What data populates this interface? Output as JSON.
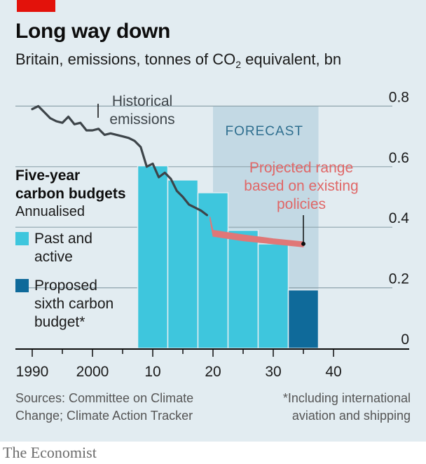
{
  "header": {
    "title": "Long way down",
    "subtitle_main": "Britain, emissions, tonnes of CO",
    "subtitle_sub": "2",
    "subtitle_tail": " equivalent, bn"
  },
  "chart_data": {
    "type": "line",
    "x_ticks": [
      1990,
      2000,
      2010,
      2020,
      2030,
      2040
    ],
    "x_tick_labels": [
      "1990",
      "2000",
      "10",
      "20",
      "30",
      "40"
    ],
    "y_ticks": [
      0,
      0.2,
      0.4,
      0.6,
      0.8
    ],
    "y_tick_labels": [
      "0",
      "0.2",
      "0.4",
      "0.6",
      "0.8"
    ],
    "xlim": [
      1990,
      2040
    ],
    "ylim": [
      0,
      0.8
    ],
    "forecast": {
      "label": "FORECAST",
      "start": 2020,
      "end": 2037.5
    },
    "historical": {
      "label_lines": [
        "Historical",
        "emissions"
      ],
      "points": [
        [
          1990,
          0.79
        ],
        [
          1991,
          0.8
        ],
        [
          1992,
          0.78
        ],
        [
          1993,
          0.76
        ],
        [
          1994,
          0.75
        ],
        [
          1995,
          0.745
        ],
        [
          1996,
          0.765
        ],
        [
          1997,
          0.74
        ],
        [
          1998,
          0.745
        ],
        [
          1999,
          0.72
        ],
        [
          2000,
          0.72
        ],
        [
          2001,
          0.725
        ],
        [
          2002,
          0.705
        ],
        [
          2003,
          0.71
        ],
        [
          2004,
          0.705
        ],
        [
          2005,
          0.7
        ],
        [
          2006,
          0.695
        ],
        [
          2007,
          0.685
        ],
        [
          2008,
          0.665
        ],
        [
          2009,
          0.6
        ],
        [
          2010,
          0.61
        ],
        [
          2011,
          0.565
        ],
        [
          2012,
          0.58
        ],
        [
          2013,
          0.56
        ],
        [
          2014,
          0.52
        ],
        [
          2015,
          0.5
        ],
        [
          2016,
          0.475
        ],
        [
          2017,
          0.465
        ],
        [
          2018,
          0.455
        ],
        [
          2019,
          0.44
        ]
      ]
    },
    "projected": {
      "label_lines": [
        "Projected range",
        "based on existing",
        "policies"
      ],
      "x": [
        2019.5,
        2020,
        2025,
        2030,
        2035
      ],
      "low": [
        0.425,
        0.37,
        0.355,
        0.345,
        0.335
      ],
      "high": [
        0.435,
        0.39,
        0.375,
        0.362,
        0.352
      ]
    },
    "budgets": [
      {
        "start": 2008,
        "end": 2012,
        "value": 0.603,
        "type": "past"
      },
      {
        "start": 2013,
        "end": 2017,
        "value": 0.556,
        "type": "past"
      },
      {
        "start": 2018,
        "end": 2022,
        "value": 0.514,
        "type": "past"
      },
      {
        "start": 2023,
        "end": 2027,
        "value": 0.39,
        "type": "past"
      },
      {
        "start": 2028,
        "end": 2032,
        "value": 0.345,
        "type": "past"
      },
      {
        "start": 2033,
        "end": 2037,
        "value": 0.193,
        "type": "proposed"
      }
    ],
    "legend": {
      "heading_lines": [
        "Five-year",
        "carbon budgets"
      ],
      "sub": "Annualised",
      "items": [
        {
          "key": "past",
          "lines": [
            "Past and",
            "active"
          ]
        },
        {
          "key": "proposed",
          "lines": [
            "Proposed",
            "sixth carbon",
            "budget*"
          ]
        }
      ]
    },
    "colors": {
      "past": "#3ec6dd",
      "proposed": "#0f6a9a",
      "forecast_band": "#c3d9e4",
      "historical": "#3d4449",
      "projected": "#e07777",
      "grid": "#8fa4ad"
    }
  },
  "footer": {
    "source_lines": [
      "Sources: Committee on Climate",
      "Change; Climate Action Tracker"
    ],
    "note_lines": [
      "*Including international",
      "aviation and shipping"
    ],
    "brand": "The Economist"
  }
}
